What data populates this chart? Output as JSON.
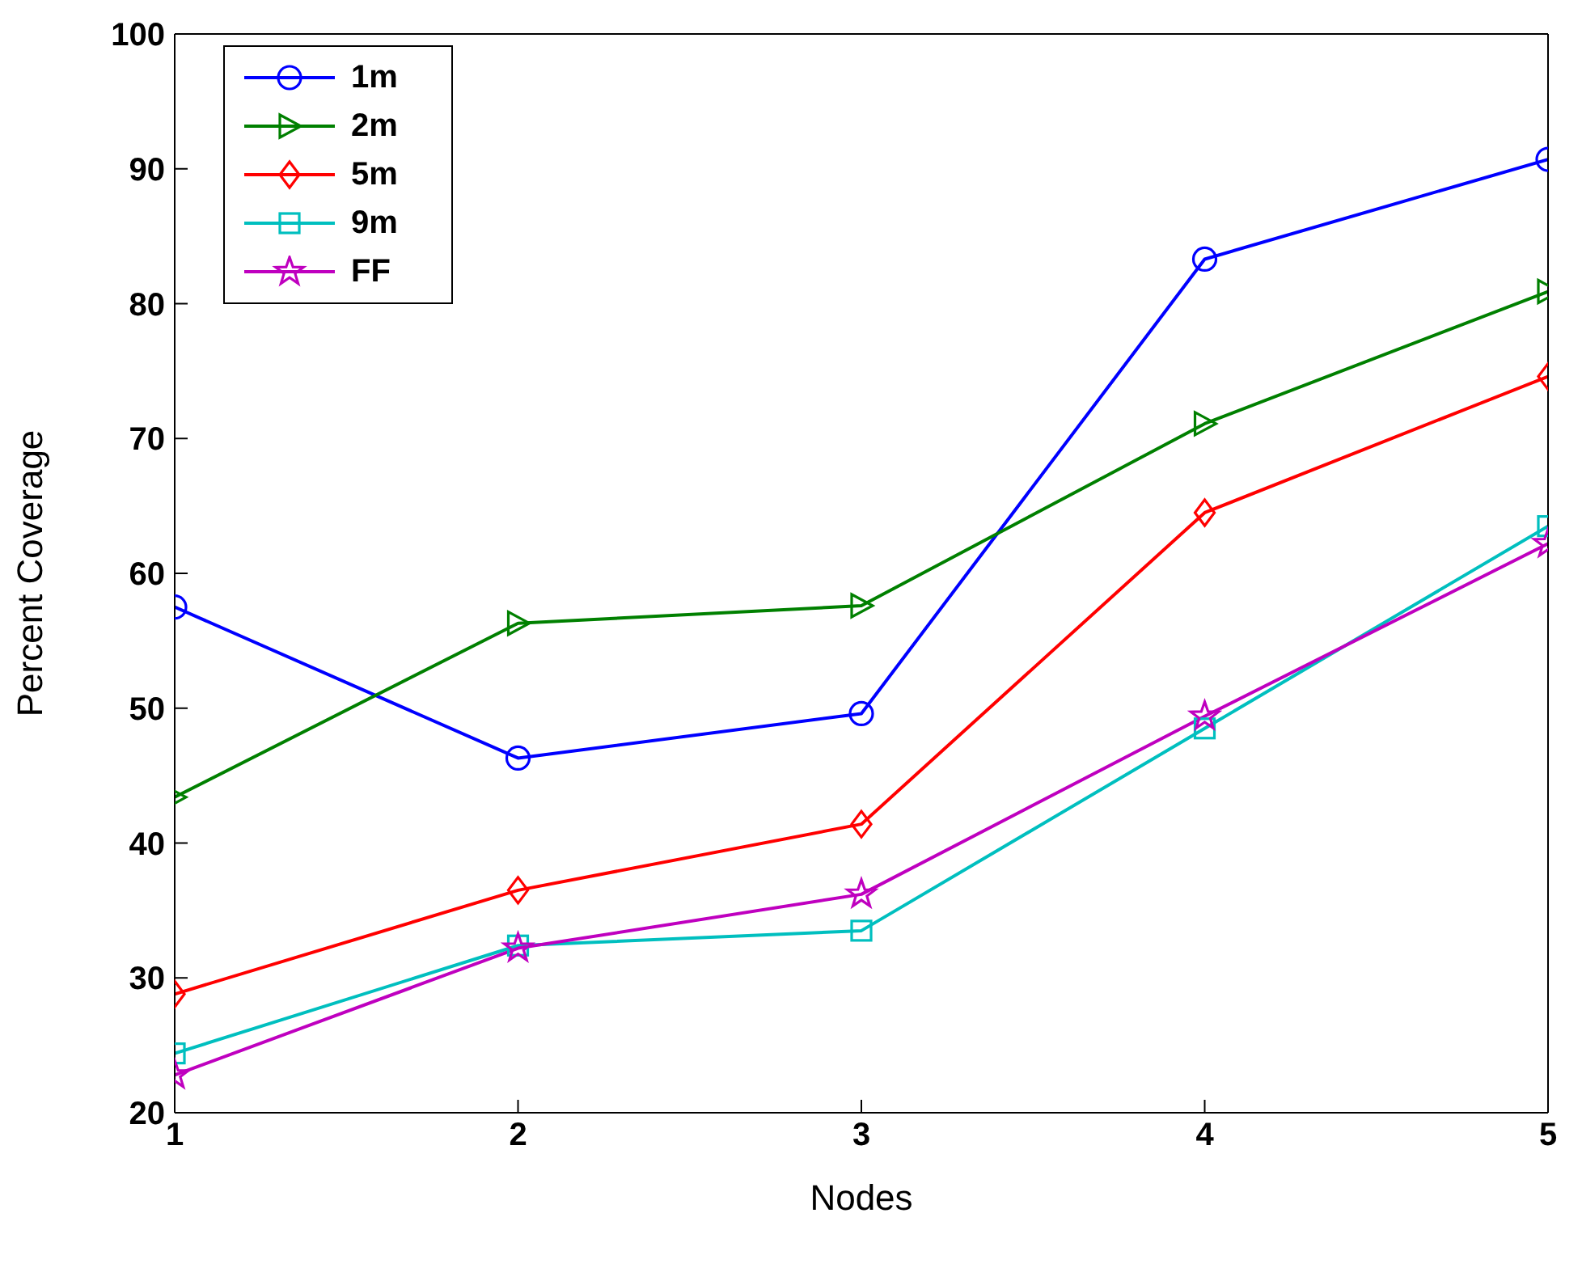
{
  "chart_data": {
    "type": "line",
    "xlabel": "Nodes",
    "ylabel": "Percent Coverage",
    "x": [
      1,
      2,
      3,
      4,
      5
    ],
    "xlim": [
      1,
      5
    ],
    "xticks": [
      1,
      2,
      3,
      4,
      5
    ],
    "ylim": [
      20,
      100
    ],
    "yticks": [
      20,
      30,
      40,
      50,
      60,
      70,
      80,
      90,
      100
    ],
    "grid": false,
    "legend": "top left",
    "line_style": "solid",
    "series": [
      {
        "name": "1m",
        "color": "#0000ff",
        "marker": "circle",
        "values": [
          57.5,
          46.3,
          49.6,
          83.3,
          90.7
        ]
      },
      {
        "name": "2m",
        "color": "#008000",
        "marker": "triangle",
        "values": [
          43.4,
          56.3,
          57.6,
          71.1,
          80.9
        ]
      },
      {
        "name": "5m",
        "color": "#ff0000",
        "marker": "diamond",
        "values": [
          28.8,
          36.5,
          41.4,
          64.5,
          74.6
        ]
      },
      {
        "name": "9m",
        "color": "#00bfbf",
        "marker": "square",
        "values": [
          24.4,
          32.4,
          33.5,
          48.5,
          63.5
        ]
      },
      {
        "name": "FF",
        "color": "#bf00bf",
        "marker": "star",
        "values": [
          22.8,
          32.2,
          36.2,
          49.4,
          62.2
        ]
      }
    ]
  }
}
